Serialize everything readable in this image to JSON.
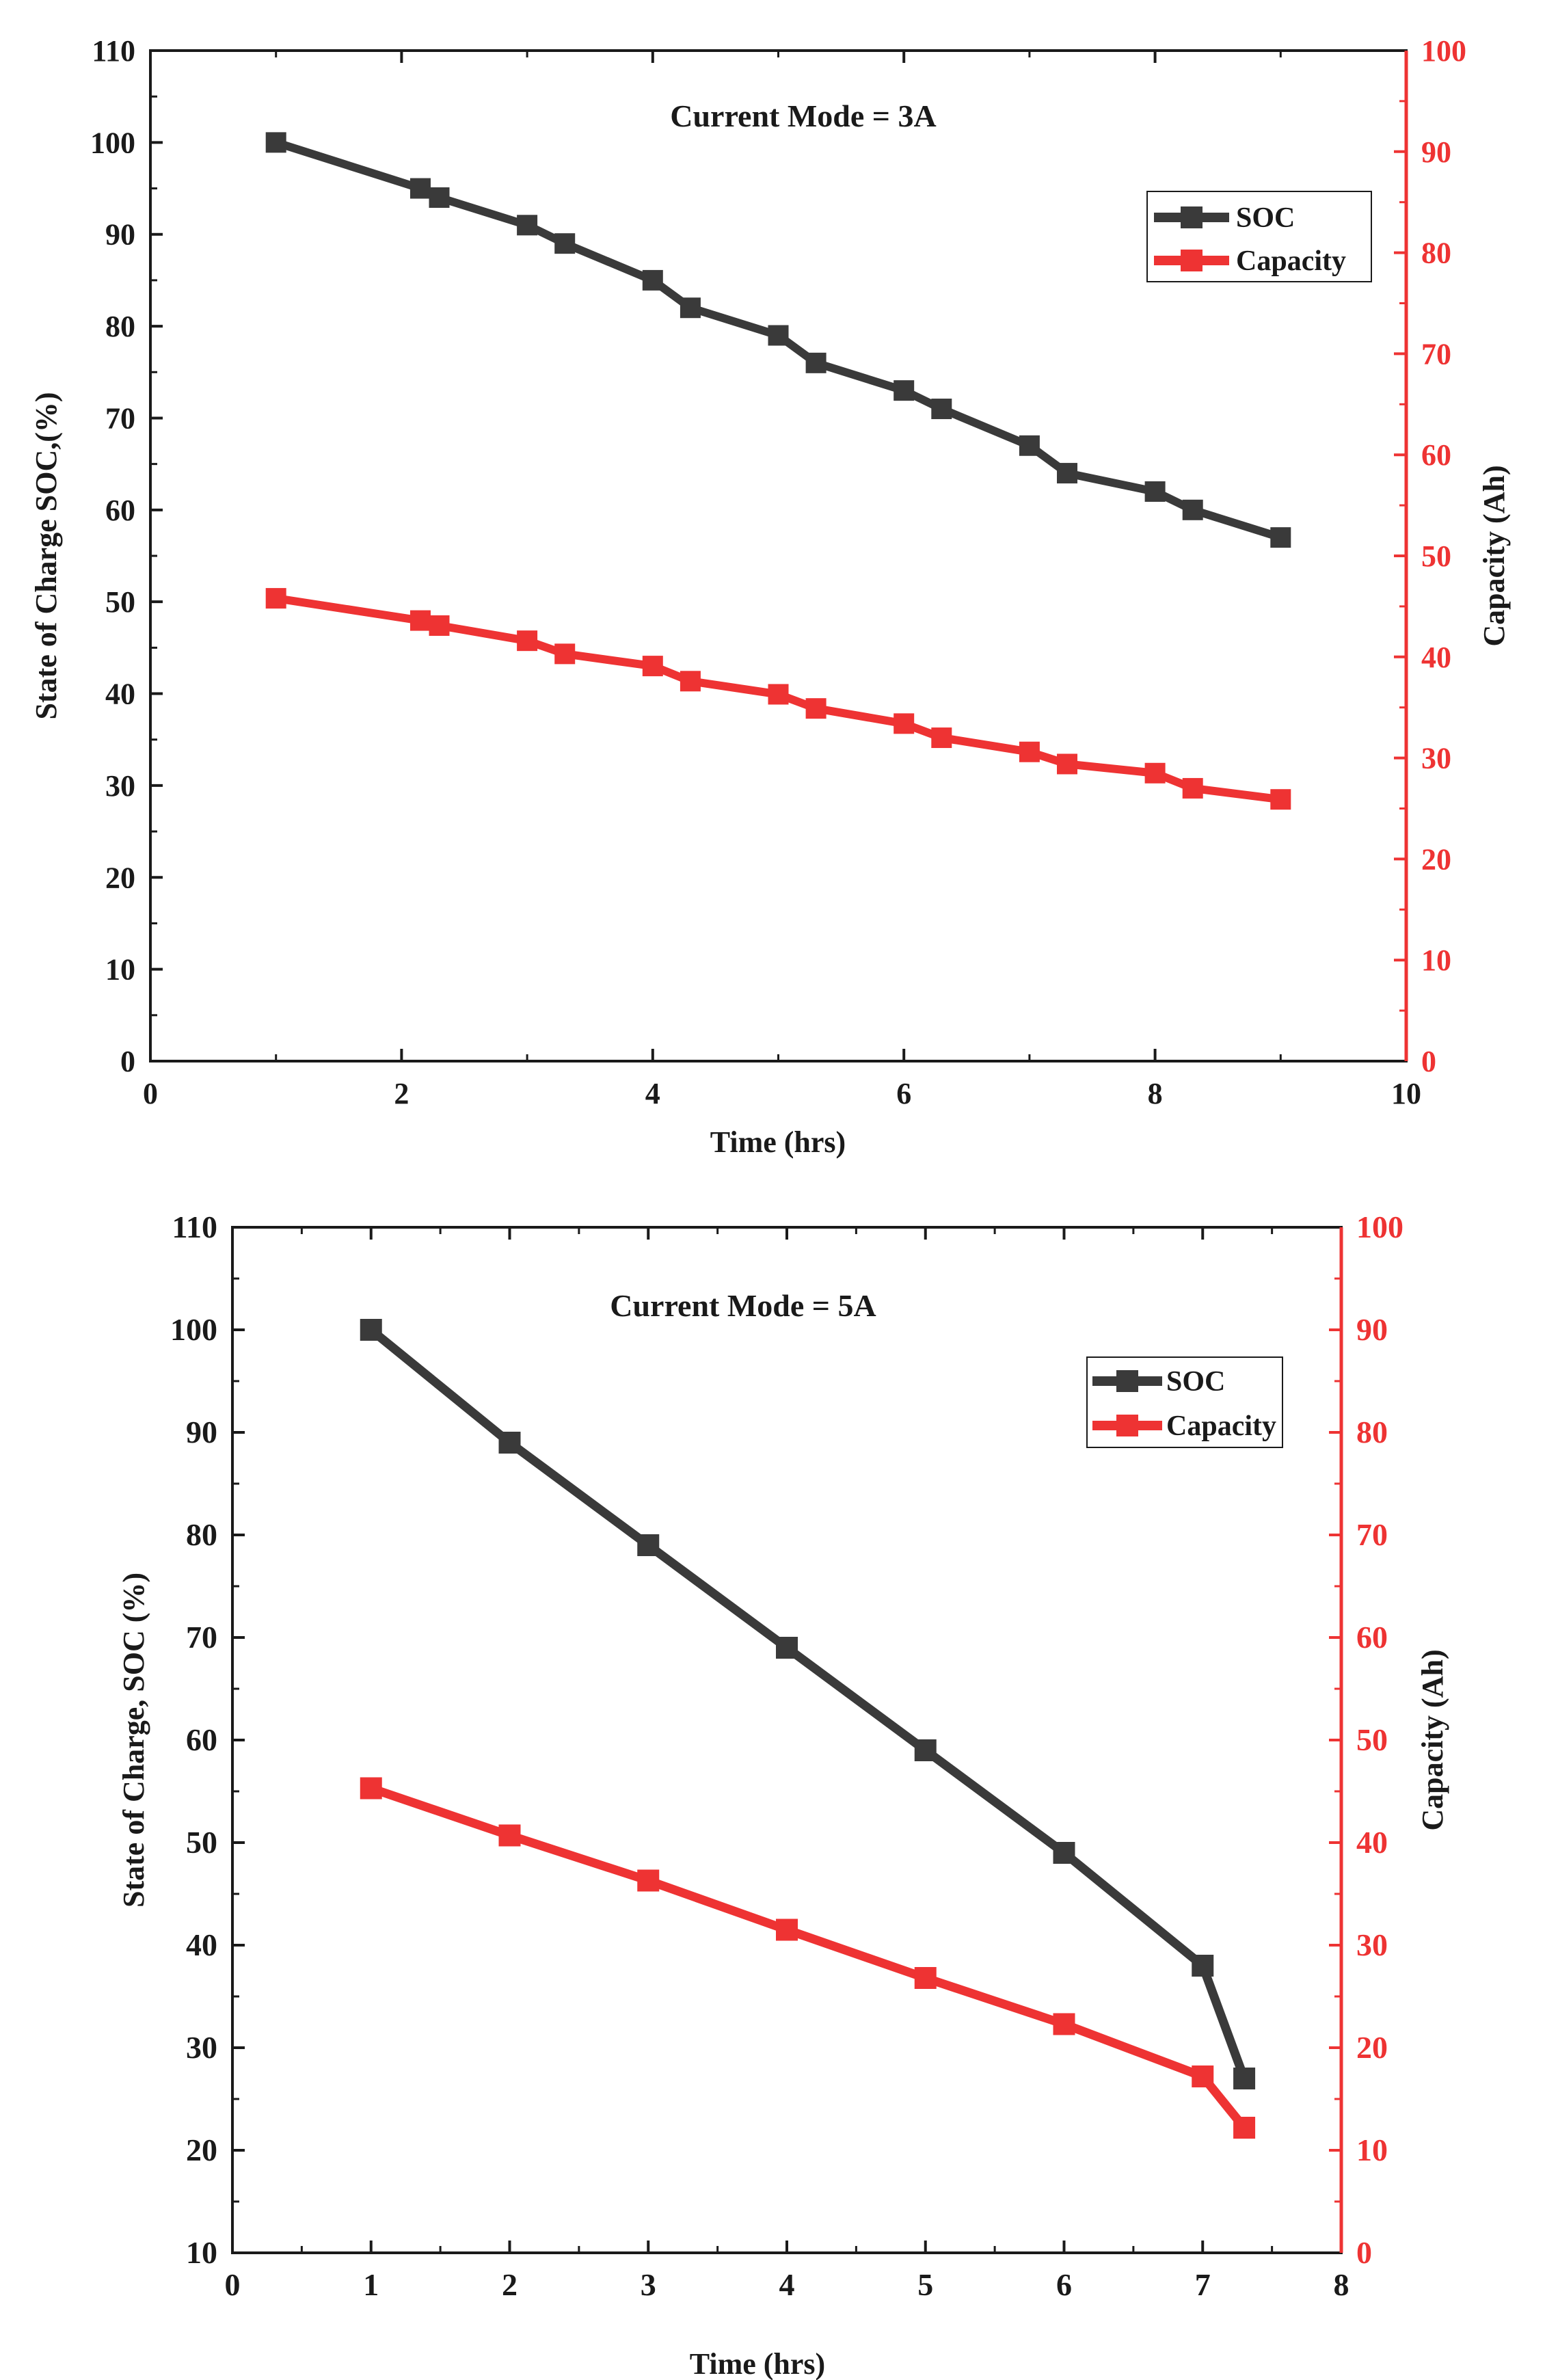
{
  "colors": {
    "soc": "#3a3a3a",
    "capacity": "#ee3333",
    "axis_left": "#1a1a1a",
    "axis_right": "#ee3333"
  },
  "chart_data": [
    {
      "type": "line",
      "title": "Current Mode = 3A",
      "xlabel": "Time (hrs)",
      "ylabel_left": "State of Charge SOC,(%)",
      "ylabel_right": "Capacity (Ah)",
      "xlim": [
        0,
        10
      ],
      "xticks": [
        0,
        2,
        4,
        6,
        8,
        10
      ],
      "ylim_left": [
        0,
        110
      ],
      "yticks_left": [
        0,
        10,
        20,
        30,
        40,
        50,
        60,
        70,
        80,
        90,
        100,
        110
      ],
      "ylim_right": [
        0,
        100
      ],
      "yticks_right": [
        0,
        10,
        20,
        30,
        40,
        50,
        60,
        70,
        80,
        90,
        100
      ],
      "legend": "top-right",
      "series": [
        {
          "name": "SOC",
          "axis": "left",
          "x": [
            1,
            2.15,
            2.3,
            3,
            3.3,
            4,
            4.3,
            5,
            5.3,
            6,
            6.3,
            7,
            7.3,
            8,
            8.3,
            9
          ],
          "values": [
            100,
            95,
            94,
            91,
            89,
            85,
            82,
            79,
            76,
            73,
            71,
            67,
            64,
            62,
            60,
            57
          ]
        },
        {
          "name": "Capacity",
          "axis": "right",
          "x": [
            1,
            2.15,
            2.3,
            3,
            3.3,
            4,
            4.3,
            5,
            5.3,
            6,
            6.3,
            7,
            7.3,
            8,
            8.3,
            9
          ],
          "values": [
            45.8,
            43.6,
            43.1,
            41.6,
            40.3,
            39.1,
            37.6,
            36.3,
            34.9,
            33.4,
            32.0,
            30.6,
            29.4,
            28.5,
            27.0,
            25.9
          ]
        }
      ]
    },
    {
      "type": "line",
      "title": "Current Mode = 5A",
      "xlabel": "Time (hrs)",
      "ylabel_left": "State of Charge, SOC (%)",
      "ylabel_right": "Capacity (Ah)",
      "xlim": [
        0,
        8
      ],
      "xticks": [
        0,
        1,
        2,
        3,
        4,
        5,
        6,
        7,
        8
      ],
      "ylim_left": [
        10,
        110
      ],
      "yticks_left": [
        10,
        20,
        30,
        40,
        50,
        60,
        70,
        80,
        90,
        100,
        110
      ],
      "ylim_right": [
        0,
        100
      ],
      "yticks_right": [
        0,
        10,
        20,
        30,
        40,
        50,
        60,
        70,
        80,
        90,
        100
      ],
      "legend": "top-right",
      "series": [
        {
          "name": "SOC",
          "axis": "left",
          "x": [
            1,
            2,
            3,
            4,
            5,
            6,
            7,
            7.3
          ],
          "values": [
            100,
            89,
            79,
            69,
            59,
            49,
            38,
            27
          ]
        },
        {
          "name": "Capacity",
          "axis": "right",
          "x": [
            1,
            2,
            3,
            4,
            5,
            6,
            7,
            7.3
          ],
          "values": [
            45.3,
            40.7,
            36.3,
            31.5,
            26.8,
            22.3,
            17.2,
            12.2
          ]
        }
      ]
    }
  ]
}
